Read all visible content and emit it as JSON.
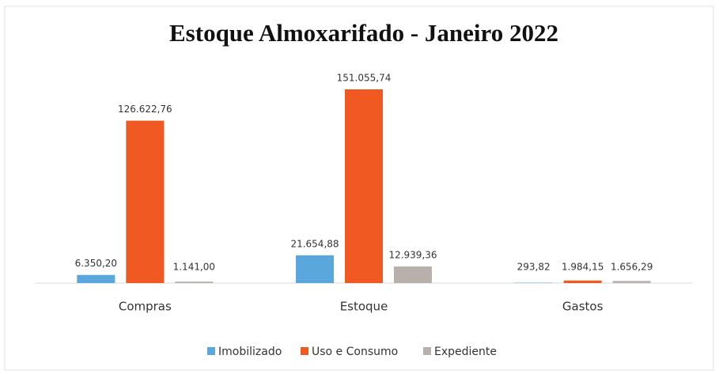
{
  "chart_data": {
    "type": "bar",
    "title": "Estoque Almoxarifado  - Janeiro 2022",
    "categories": [
      "Compras",
      "Estoque",
      "Gastos"
    ],
    "series": [
      {
        "name": "Imobilizado",
        "color": "#5aa7dd",
        "values": [
          6350.2,
          21654.88,
          293.82
        ],
        "value_labels": [
          "6.350,20",
          "21.654,88",
          "293,82"
        ]
      },
      {
        "name": "Uso e Consumo",
        "color": "#f05a22",
        "values": [
          126622.76,
          151055.74,
          1984.15
        ],
        "value_labels": [
          "126.622,76",
          "151.055,74",
          "1.984,15"
        ]
      },
      {
        "name": "Expediente",
        "color": "#b9b0ab",
        "values": [
          1141.0,
          12939.36,
          1656.29
        ],
        "value_labels": [
          "1.141,00",
          "12.939,36",
          "1.656,29"
        ]
      }
    ],
    "legend": "bottom"
  }
}
